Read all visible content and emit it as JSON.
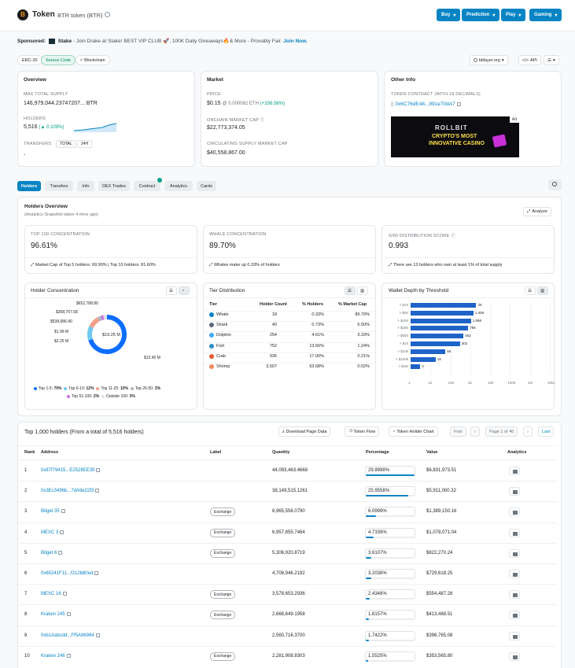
{
  "header": {
    "logo_letter": "B",
    "title": "Token",
    "subtitle": "BTR token (BTR)",
    "menu": [
      "Buy",
      "Prediction",
      "Play",
      "Gaming"
    ]
  },
  "sponsor": {
    "label": "Sponsored:",
    "brand": "Stake",
    "text": "- Join Drake at Stake! BEST VIP CLUB 🚀, 100K Daily Giveaways🔥& More - Provably Fair.",
    "cta": "Join Now."
  },
  "chips": [
    "ERC-20",
    "Source Code",
    "Blockchain"
  ],
  "right_tools": {
    "site": "bitlayer.org",
    "api": "API"
  },
  "overview": {
    "title": "Overview",
    "max_supply_label": "MAX TOTAL SUPPLY",
    "max_supply": "146,979,044.23747207... BTR",
    "holders_label": "HOLDERS",
    "holders": "5,516",
    "holders_change": "(▲ 0.109%)",
    "transfers_label": "TRANSFERS",
    "transfers_tabs": [
      "TOTAL",
      "24H"
    ],
    "transfers_value": "-"
  },
  "market": {
    "title": "Market",
    "price_label": "PRICE",
    "price": "$0.15",
    "price_eth": "@ 0.000062 ETH",
    "price_change": "(+336.56%)",
    "onchain_label": "ONCHAIN MARKET CAP",
    "onchain": "$22,773,374.05",
    "circ_label": "CIRCULATING SUPPLY MARKET CAP",
    "circ": "$40,558,867.00"
  },
  "other": {
    "title": "Other Info",
    "contract_label": "TOKEN CONTRACT (WITH 18 DECIMALS)",
    "contract": "0x6C76dE48...991e70dA7",
    "ad_tag": "Ad",
    "ad_title": "ROLLBIT",
    "ad_line1": "CRYPTO'S MOST",
    "ad_line2": "INNOVATIVE CASINO"
  },
  "tabs": [
    "Holders",
    "Transfers",
    "Info",
    "DEX Trades",
    "Contract",
    "Analytics",
    "Cards"
  ],
  "holders_overview": {
    "title": "Holders Overview",
    "subtitle": "(Analytics Snapshot taken 4 mins ago)",
    "analyze": "Analyze"
  },
  "stats": [
    {
      "label": "TOP 100 CONCENTRATION",
      "value": "96.61%",
      "note": "Market Cap of Top 5 holders: 69.90% | Top 10 holders: 81.60%"
    },
    {
      "label": "WHALE CONCENTRATION",
      "value": "89.70%",
      "note": "Whales make up 0.33% of holders"
    },
    {
      "label": "GINI DISTRIBUTION SCORE",
      "value": "0.993",
      "note": "There are 13 holders who own at least 1% of total supply"
    }
  ],
  "concentration": {
    "title": "Holder Concentration",
    "center_label": "$19.25 M",
    "slice_labels": [
      "$652,788.80",
      "$358,707.68",
      "$538,686.40",
      "$1.99 M",
      "$2.25 M",
      "$13.45 M"
    ],
    "legend": [
      {
        "name": "Top 1-5:",
        "pct": "70%",
        "color": "#0d6efd"
      },
      {
        "name": "Top 6-10:",
        "pct": "12%",
        "color": "#6ec8f0"
      },
      {
        "name": "Top 11-25:",
        "pct": "10%",
        "color": "#f3a08b"
      },
      {
        "name": "Top 26-50:",
        "pct": "3%",
        "color": "#adb5bd"
      },
      {
        "name": "Top 51-100:",
        "pct": "2%",
        "color": "#c86ee0"
      },
      {
        "name": "Outside 100:",
        "pct": "3%",
        "color": "#dee2e6"
      }
    ]
  },
  "chart_data": {
    "type": "pie",
    "title": "Holder Concentration",
    "categories": [
      "Top 1-5",
      "Top 6-10",
      "Top 11-25",
      "Top 26-50",
      "Top 51-100",
      "Outside 100"
    ],
    "values": [
      70,
      12,
      10,
      3,
      2,
      3
    ]
  },
  "tier": {
    "title": "Tier Distribution",
    "headers": [
      "Tier",
      "Holder Count",
      "% Holders",
      "% Market Cap"
    ],
    "rows": [
      {
        "tier": "Whale",
        "count": "18",
        "holders": "0.33%",
        "mcap": "89.70%",
        "color": "#0784c3"
      },
      {
        "tier": "Shark",
        "count": "40",
        "holders": "0.73%",
        "mcap": "5.50%",
        "color": "#5c6b7a"
      },
      {
        "tier": "Dolphin",
        "count": "254",
        "holders": "4.61%",
        "mcap": "3.33%",
        "color": "#3fa9f5"
      },
      {
        "tier": "Fish",
        "count": "752",
        "holders": "13.66%",
        "mcap": "1.24%",
        "color": "#2b8fc6"
      },
      {
        "tier": "Crab",
        "count": "936",
        "holders": "17.00%",
        "mcap": "0.21%",
        "color": "#e4572e"
      },
      {
        "tier": "Shrimp",
        "count": "3,507",
        "holders": "63.68%",
        "mcap": "0.02%",
        "color": "#f08a5d"
      }
    ]
  },
  "depth": {
    "title": "Wallet Depth by Threshold",
    "rows": [
      {
        "label": "> $10",
        "value": "2K",
        "n": 2000
      },
      {
        "label": "> $50",
        "value": "1.45K",
        "n": 1450
      },
      {
        "label": "> $100",
        "value": "1.08K",
        "n": 1080
      },
      {
        "label": "> $250",
        "value": "786",
        "n": 786
      },
      {
        "label": "> $500",
        "value": "452",
        "n": 452
      },
      {
        "label": "> $1k",
        "value": "302",
        "n": 302
      },
      {
        "label": "> $10k",
        "value": "56",
        "n": 56
      },
      {
        "label": "> $100k",
        "value": "18",
        "n": 18
      },
      {
        "label": "> $1M",
        "value": "3",
        "n": 3
      }
    ],
    "ticks": [
      "1",
      "10",
      "100",
      "1K",
      "10K",
      "100K",
      "1M",
      "10M"
    ]
  },
  "top": {
    "title": "Top 1,000 holders (From a total of 5,516 holders)",
    "download": "Download Page Data",
    "flow": "Token Flow",
    "chart": "Token Holder Chart",
    "first": "First",
    "page": "Page 1 of 40",
    "last": "Last",
    "headers": [
      "Rank",
      "Address",
      "Label",
      "Quantity",
      "Percentage",
      "Value",
      "Analytics"
    ],
    "rows": [
      {
        "rank": "1",
        "address": "0x87f79415...E2528EE39",
        "label": "",
        "qty": "44,093,463.4668",
        "pct": "29.9998%",
        "p": 29.9998,
        "value": "$6,831,973.51"
      },
      {
        "rank": "2",
        "address": "0x3Ec3496b...7dA9e22f3",
        "label": "",
        "qty": "38,149,515.1261",
        "pct": "25.9558%",
        "p": 25.9558,
        "value": "$5,911,000.32"
      },
      {
        "rank": "3",
        "address": "Bitget 35",
        "label": "Exchange",
        "qty": "8,965,556.0790",
        "pct": "6.0999%",
        "p": 6.0999,
        "value": "$1,389,150.16"
      },
      {
        "rank": "4",
        "address": "MEXC 3",
        "label": "Exchange",
        "qty": "6,957,855.7464",
        "pct": "4.7339%",
        "p": 4.7339,
        "value": "$1,078,071.04"
      },
      {
        "rank": "5",
        "address": "Bitget 6",
        "label": "Exchange",
        "qty": "5,306,920.8719",
        "pct": "3.6107%",
        "p": 3.6107,
        "value": "$822,270.24"
      },
      {
        "rank": "6",
        "address": "0x65241F11...f212b80ed",
        "label": "",
        "qty": "4,708,946.2192",
        "pct": "3.2038%",
        "p": 3.2038,
        "value": "$729,618.25"
      },
      {
        "rank": "7",
        "address": "MEXC 16",
        "label": "Exchange",
        "qty": "3,578,653.2936",
        "pct": "2.4348%",
        "p": 2.4348,
        "value": "$554,487.28"
      },
      {
        "rank": "8",
        "address": "Kraken 245",
        "label": "Exchange",
        "qty": "2,668,649.1958",
        "pct": "1.8157%",
        "p": 1.8157,
        "value": "$413,488.51"
      },
      {
        "rank": "9",
        "address": "0xb1Aabcdd...Ff5A96994",
        "label": "",
        "qty": "2,560,716.3700",
        "pct": "1.7422%",
        "p": 1.7422,
        "value": "$396,765.08"
      },
      {
        "rank": "10",
        "address": "Kraken 246",
        "label": "Exchange",
        "qty": "2,281,908.8303",
        "pct": "1.5525%",
        "p": 1.5525,
        "value": "$353,565.80"
      }
    ]
  }
}
